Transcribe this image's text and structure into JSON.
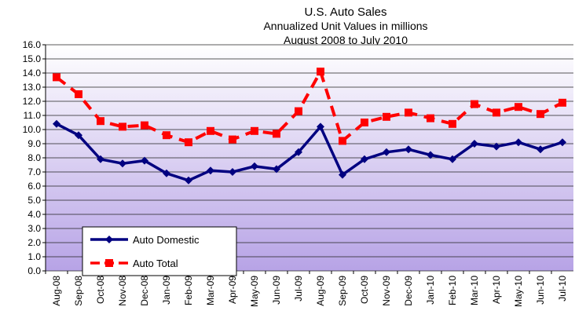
{
  "chart_data": {
    "type": "line",
    "title": "U.S. Auto Sales",
    "subtitle": [
      "Annualized Unit Values in millions",
      "August 2008 to July 2010"
    ],
    "categories": [
      "Aug-08",
      "Sep-08",
      "Oct-08",
      "Nov-08",
      "Dec-08",
      "Jan-09",
      "Feb-09",
      "Mar-09",
      "Apr-09",
      "May-09",
      "Jun-09",
      "Jul-09",
      "Aug-09",
      "Sep-09",
      "Oct-09",
      "Nov-09",
      "Dec-09",
      "Jan-10",
      "Feb-10",
      "Mar-10",
      "Apr-10",
      "May-10",
      "Jun-10",
      "Jul-10"
    ],
    "series": [
      {
        "name": "Auto Domestic",
        "color": "#000080",
        "marker": "diamond",
        "dashed": false,
        "values": [
          10.4,
          9.6,
          7.9,
          7.6,
          7.8,
          6.9,
          6.4,
          7.1,
          7.0,
          7.4,
          7.2,
          8.4,
          10.2,
          6.8,
          7.9,
          8.4,
          8.6,
          8.2,
          7.9,
          9.0,
          8.8,
          9.1,
          8.6,
          9.1
        ]
      },
      {
        "name": "Auto Total",
        "color": "#ff0000",
        "marker": "square",
        "dashed": true,
        "values": [
          13.7,
          12.5,
          10.6,
          10.2,
          10.3,
          9.6,
          9.1,
          9.9,
          9.3,
          9.9,
          9.7,
          11.3,
          14.1,
          9.2,
          10.5,
          10.9,
          11.2,
          10.8,
          10.4,
          11.8,
          11.2,
          11.6,
          11.1,
          11.9
        ]
      }
    ],
    "ylim": [
      0,
      16
    ],
    "yticks": [
      {
        "value": 0,
        "label": "0.0"
      },
      {
        "value": 1,
        "label": "1.0"
      },
      {
        "value": 2,
        "label": "2.0"
      },
      {
        "value": 3,
        "label": "3.0"
      },
      {
        "value": 4,
        "label": "4.0"
      },
      {
        "value": 5,
        "label": "5.0"
      },
      {
        "value": 6,
        "label": "6.0"
      },
      {
        "value": 7,
        "label": "7.0"
      },
      {
        "value": 8,
        "label": "8.0"
      },
      {
        "value": 9,
        "label": "9.0"
      },
      {
        "value": 10,
        "label": "10.0"
      },
      {
        "value": 11,
        "label": "11.0"
      },
      {
        "value": 12,
        "label": "12.0"
      },
      {
        "value": 13,
        "label": "13.0"
      },
      {
        "value": 14,
        "label": "14.0"
      },
      {
        "value": 15,
        "label": "15.0"
      },
      {
        "value": 16,
        "label": "16.0"
      }
    ],
    "grid": true,
    "legend": "lower left"
  }
}
